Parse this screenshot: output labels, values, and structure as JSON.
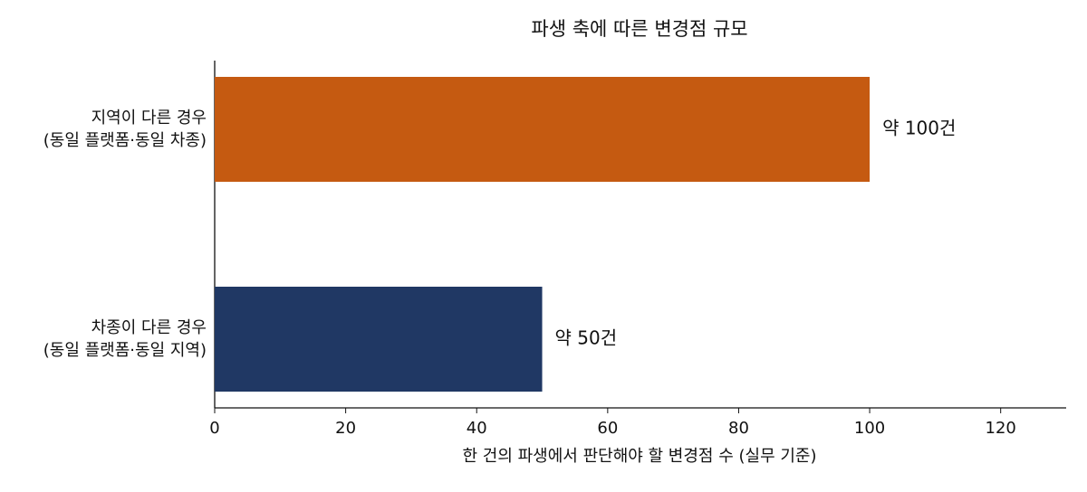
{
  "chart_data": {
    "type": "barh",
    "title": "파생 축에 따른 변경점 규모",
    "x_label": "한 건의 파생에서 판단해야 할 변경점 수 (실무 기준)",
    "categories": [
      "지역이 다른 경우\n(동일 플랫폼·동일 차종)",
      "차종이 다른 경우\n(동일 플랫폼·동일 지역)"
    ],
    "values": [
      100,
      50
    ],
    "value_labels": [
      "약 100건",
      "약 50건"
    ],
    "colors": [
      "#c55a11",
      "#203864"
    ],
    "xlim": [
      0,
      130
    ],
    "xticks": [
      0,
      20,
      40,
      60,
      80,
      100,
      120
    ]
  }
}
